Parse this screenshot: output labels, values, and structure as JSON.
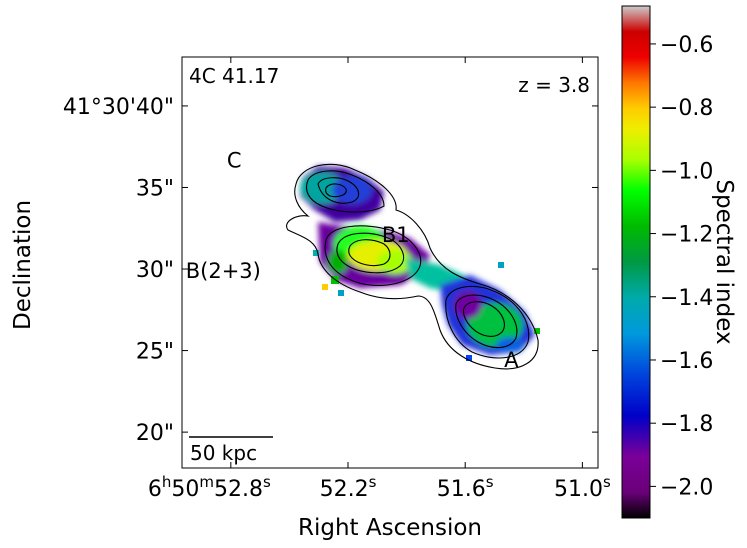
{
  "chart_data": {
    "type": "heatmap",
    "title": "",
    "source_label": "4C 41.17",
    "redshift_label": "z = 3.8",
    "xlabel": "Right Ascension",
    "ylabel": "Declination",
    "colorbar_label": "Spectral index",
    "colormap": "nipy_spectral",
    "colorbar_range": [
      -2.1,
      -0.48
    ],
    "colorbar_ticks": [
      {
        "value": -0.6,
        "label": "−0.6"
      },
      {
        "value": -0.8,
        "label": "−0.8"
      },
      {
        "value": -1.0,
        "label": "−1.0"
      },
      {
        "value": -1.2,
        "label": "−1.2"
      },
      {
        "value": -1.4,
        "label": "−1.4"
      },
      {
        "value": -1.6,
        "label": "−1.6"
      },
      {
        "value": -1.8,
        "label": "−1.8"
      },
      {
        "value": -2.0,
        "label": "−2.0"
      }
    ],
    "dec_range_arcsec": [
      17.8,
      43.0
    ],
    "ra_range_s": [
      50.92,
      53.05
    ],
    "yticks": [
      {
        "value": 40,
        "label": "41°30'40\""
      },
      {
        "value": 35,
        "label": "35\""
      },
      {
        "value": 30,
        "label": "30\""
      },
      {
        "value": 25,
        "label": "25\""
      },
      {
        "value": 20,
        "label": "20\""
      }
    ],
    "xticks": [
      {
        "value": 52.8,
        "label_main": "6",
        "label_sup1": "h",
        "label_mid": "50",
        "label_sup2": "m",
        "label_end": "52.8",
        "label_sup3": "s"
      },
      {
        "value": 52.2,
        "label_main": "52.2",
        "label_sup3": "s"
      },
      {
        "value": 51.6,
        "label_main": "51.6",
        "label_sup3": "s"
      },
      {
        "value": 51.0,
        "label_main": "51.0",
        "label_sup3": "s"
      }
    ],
    "scale_bar_label": "50 kpc",
    "components": [
      {
        "label": "C",
        "ra": 52.67,
        "dec": 34.4,
        "spectral_index": -1.55
      },
      {
        "label": "B1",
        "ra": 52.15,
        "dec": 30.8,
        "spectral_index": -1.05
      },
      {
        "label": "B(2+3)",
        "ra": 52.48,
        "dec": 30.3,
        "spectral_index": -1.35
      },
      {
        "label": "A",
        "ra": 51.62,
        "dec": 26.8,
        "spectral_index": -1.35
      }
    ]
  }
}
